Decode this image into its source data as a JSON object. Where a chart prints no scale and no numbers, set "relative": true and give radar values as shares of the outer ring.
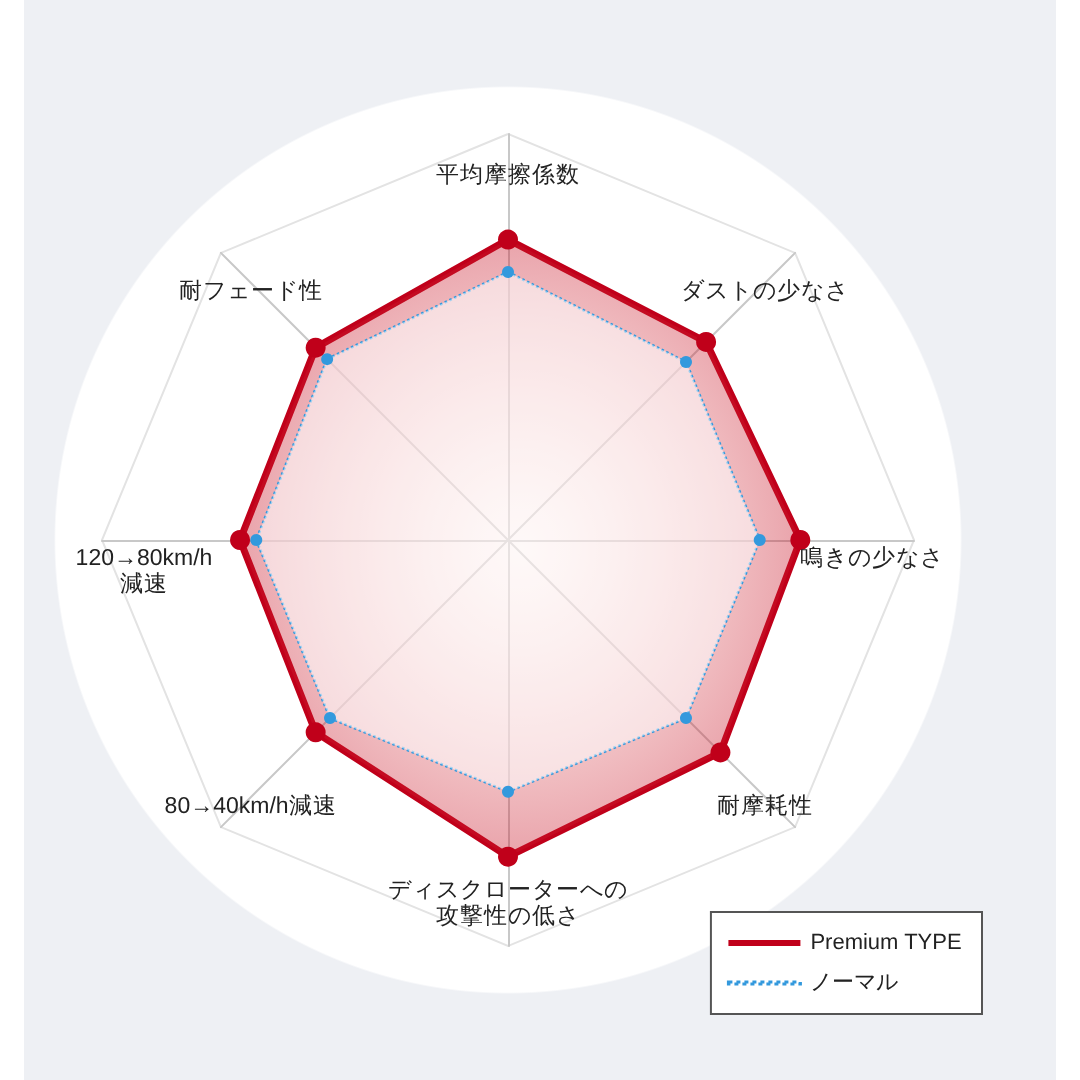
{
  "chart_data": {
    "type": "radar",
    "relative": true,
    "marker": "circle",
    "legend": "bottom right",
    "categories": [
      "平均摩擦係数",
      "ダストの少なさ",
      "鳴きの少なさ",
      "耐摩耗性",
      "ディスクローターへの攻撃性の低さ",
      "80→40km/h減速",
      "120→80km/h減速",
      "耐フェード性"
    ],
    "series": [
      {
        "name": "Premium TYPE",
        "color": "#c0001a",
        "line_style": "solid",
        "values": [
          0.74,
          0.69,
          0.72,
          0.74,
          0.78,
          0.67,
          0.66,
          0.67
        ]
      },
      {
        "name": "ノーマル",
        "color": "#3399dd",
        "line_style": "dotted",
        "values": [
          0.66,
          0.62,
          0.62,
          0.62,
          0.62,
          0.62,
          0.62,
          0.63
        ]
      }
    ]
  }
}
